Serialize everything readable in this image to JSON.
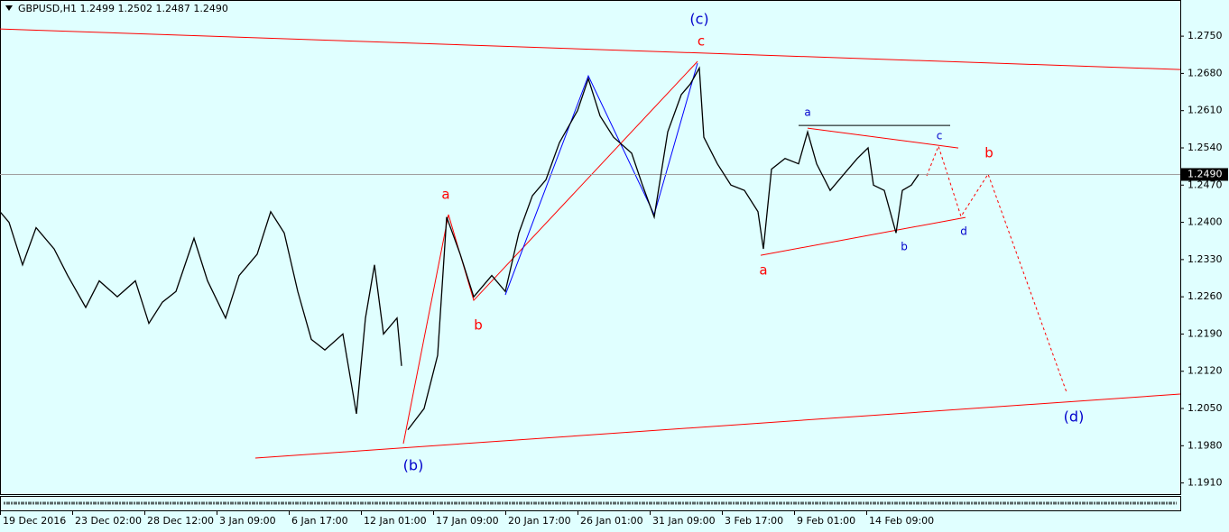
{
  "chart_data": {
    "type": "line",
    "title": "GBPUSD,H1  1.2499 1.2502 1.2487 1.2490",
    "background": "#e0ffff",
    "xlim": [
      0,
      1308
    ],
    "ylim": [
      1.1889,
      1.2818
    ],
    "xticks": [
      {
        "value": 0,
        "label": "19 Dec 2016"
      },
      {
        "value": 80,
        "label": "23 Dec 02:00"
      },
      {
        "value": 160,
        "label": "28 Dec 12:00"
      },
      {
        "value": 240,
        "label": "3 Jan 09:00"
      },
      {
        "value": 320,
        "label": "6 Jan 17:00"
      },
      {
        "value": 400,
        "label": "12 Jan 01:00"
      },
      {
        "value": 480,
        "label": "17 Jan 09:00"
      },
      {
        "value": 560,
        "label": "20 Jan 17:00"
      },
      {
        "value": 640,
        "label": "26 Jan 01:00"
      },
      {
        "value": 720,
        "label": "31 Jan 09:00"
      },
      {
        "value": 800,
        "label": "3 Feb 17:00"
      },
      {
        "value": 880,
        "label": "9 Feb 01:00"
      },
      {
        "value": 960,
        "label": "14 Feb 09:00"
      }
    ],
    "yticks": [
      {
        "value": 1.275,
        "label": "1.2750"
      },
      {
        "value": 1.268,
        "label": "1.2680"
      },
      {
        "value": 1.261,
        "label": "1.2610"
      },
      {
        "value": 1.254,
        "label": "1.2540"
      },
      {
        "value": 1.247,
        "label": "1.2470"
      },
      {
        "value": 1.24,
        "label": "1.2400"
      },
      {
        "value": 1.233,
        "label": "1.2330"
      },
      {
        "value": 1.226,
        "label": "1.2260"
      },
      {
        "value": 1.219,
        "label": "1.2190"
      },
      {
        "value": 1.212,
        "label": "1.2120"
      },
      {
        "value": 1.205,
        "label": "1.2050"
      },
      {
        "value": 1.198,
        "label": "1.1980"
      },
      {
        "value": 1.191,
        "label": "1.1910"
      }
    ],
    "current_price": {
      "value": 1.249,
      "label": "1.2490"
    },
    "series": [
      {
        "color": "#000000",
        "x": [
          0,
          10,
          25,
          40,
          60,
          75,
          95,
          110,
          130,
          150,
          165,
          180,
          195,
          215,
          230,
          250,
          265,
          285,
          300,
          315,
          330,
          345,
          360,
          380,
          395,
          405,
          415,
          425,
          440,
          445,
          447,
          452,
          470,
          485,
          495,
          510,
          525,
          545,
          560,
          575,
          590,
          605,
          620,
          640,
          652,
          665,
          680,
          700,
          712,
          725,
          740,
          755,
          765,
          775,
          780,
          795,
          810,
          825,
          840,
          846,
          855,
          870,
          885,
          895,
          905,
          920,
          935,
          950,
          962,
          968,
          980,
          993,
          1000,
          1010,
          1018
        ],
        "values": [
          1.242,
          1.24,
          1.232,
          1.239,
          1.235,
          1.23,
          1.224,
          1.229,
          1.226,
          1.229,
          1.221,
          1.225,
          1.227,
          1.237,
          1.229,
          1.222,
          1.23,
          1.234,
          1.242,
          1.238,
          1.227,
          1.218,
          1.216,
          1.219,
          1.204,
          1.222,
          1.232,
          1.219,
          1.222,
          1.213,
          null,
          1.201,
          1.205,
          1.215,
          1.241,
          1.234,
          1.226,
          1.23,
          1.227,
          1.238,
          1.245,
          1.248,
          1.255,
          1.261,
          1.267,
          1.26,
          1.256,
          1.253,
          1.247,
          1.241,
          1.257,
          1.264,
          1.266,
          1.269,
          1.256,
          1.251,
          1.247,
          1.246,
          1.242,
          1.235,
          1.25,
          1.252,
          1.251,
          1.257,
          1.251,
          1.246,
          1.249,
          1.252,
          1.254,
          1.247,
          1.246,
          1.238,
          1.246,
          1.247,
          1.249
        ]
      }
    ],
    "trendlines": [
      {
        "color": "#ff0000",
        "style": "solid",
        "x": [
          0,
          1308
        ],
        "y": [
          1.27636,
          1.26873
        ]
      },
      {
        "color": "#ff0000",
        "style": "solid",
        "x": [
          283,
          1308
        ],
        "y": [
          1.19568,
          1.20771
        ]
      },
      {
        "color": "#ff0000",
        "style": "solid",
        "x": [
          447,
          497,
          525,
          773
        ],
        "y": [
          1.19839,
          1.24145,
          1.22534,
          1.27025
        ]
      },
      {
        "color": "#0000ff",
        "style": "solid",
        "x": [
          560,
          652,
          725,
          773
        ],
        "y": [
          1.22636,
          1.26754,
          1.24145,
          1.26992
        ]
      },
      {
        "color": "#000000",
        "style": "solid",
        "x": [
          885,
          1053
        ],
        "y": [
          1.25822,
          1.25822
        ]
      },
      {
        "color": "#ff0000",
        "style": "solid",
        "x": [
          895,
          1062
        ],
        "y": [
          1.25771,
          1.25398
        ]
      },
      {
        "color": "#ff0000",
        "style": "solid",
        "x": [
          843,
          1070
        ],
        "y": [
          1.23381,
          1.24093
        ]
      },
      {
        "color": "#ff0000",
        "style": "dotted",
        "x": [
          1027,
          1040,
          1065,
          1095,
          1182
        ],
        "y": [
          1.24873,
          1.25432,
          1.2411,
          1.24907,
          1.20805
        ]
      }
    ],
    "annotations": [
      {
        "text": "(c)",
        "x": 775,
        "y": 1.27805,
        "color": "#0000cc",
        "size": 16
      },
      {
        "text": "c",
        "x": 777,
        "y": 1.27398,
        "color": "#ff0000",
        "size": 15
      },
      {
        "text": "a",
        "x": 494,
        "y": 1.24517,
        "color": "#ff0000",
        "size": 15
      },
      {
        "text": "b",
        "x": 530,
        "y": 1.22059,
        "color": "#ff0000",
        "size": 15
      },
      {
        "text": "a",
        "x": 846,
        "y": 1.23093,
        "color": "#ff0000",
        "size": 15
      },
      {
        "text": "b",
        "x": 1096,
        "y": 1.25297,
        "color": "#ff0000",
        "size": 15
      },
      {
        "text": "(b)",
        "x": 458,
        "y": 1.19415,
        "color": "#0000cc",
        "size": 16
      },
      {
        "text": "(d)",
        "x": 1190,
        "y": 1.20331,
        "color": "#0000cc",
        "size": 16
      },
      {
        "text": "a",
        "x": 895,
        "y": 1.26059,
        "color": "#0000cc",
        "size": 12
      },
      {
        "text": "b",
        "x": 1002,
        "y": 1.23534,
        "color": "#0000cc",
        "size": 12
      },
      {
        "text": "c",
        "x": 1041,
        "y": 1.25619,
        "color": "#0000cc",
        "size": 12
      },
      {
        "text": "d",
        "x": 1068,
        "y": 1.23822,
        "color": "#0000cc",
        "size": 12
      }
    ]
  }
}
